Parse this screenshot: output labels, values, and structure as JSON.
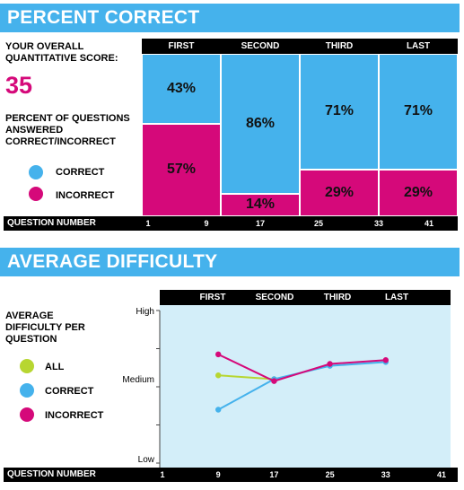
{
  "colors": {
    "accent": "#45b2ec",
    "correct": "#45b2ec",
    "incorrect": "#d5097a",
    "all": "#b7d631",
    "plot_bg": "#d3eef9"
  },
  "section1": {
    "title": "PERCENT CORRECT",
    "score_label": "YOUR OVERALL QUANTITATIVE SCORE:",
    "score_value": "35",
    "percent_label": "PERCENT OF QUESTIONS ANSWERED CORRECT/INCORRECT",
    "legend": {
      "correct": "CORRECT",
      "incorrect": "INCORRECT"
    },
    "question_number_label": "QUESTION NUMBER"
  },
  "section2": {
    "title": "AVERAGE DIFFICULTY",
    "avg_label": "AVERAGE DIFFICULTY PER QUESTION",
    "legend": {
      "all": "ALL",
      "correct": "CORRECT",
      "incorrect": "INCORRECT"
    },
    "question_number_label": "QUESTION NUMBER"
  },
  "chart_data": [
    {
      "type": "bar",
      "categories": [
        "FIRST",
        "SECOND",
        "THIRD",
        "LAST"
      ],
      "series": [
        {
          "name": "CORRECT",
          "values": [
            43,
            86,
            71,
            71
          ],
          "labels": [
            "43%",
            "86%",
            "71%",
            "71%"
          ]
        },
        {
          "name": "INCORRECT",
          "values": [
            57,
            14,
            29,
            29
          ],
          "labels": [
            "57%",
            "14%",
            "29%",
            "29%"
          ]
        }
      ],
      "x_ticks": [
        "1",
        "9",
        "17",
        "25",
        "33",
        "41"
      ],
      "ylim": [
        0,
        100
      ]
    },
    {
      "type": "line",
      "categories": [
        "FIRST",
        "SECOND",
        "THIRD",
        "LAST"
      ],
      "x": [
        9,
        17,
        25,
        33
      ],
      "x_ticks": [
        "1",
        "9",
        "17",
        "25",
        "33",
        "41"
      ],
      "y_ticks": [
        "High",
        "Medium",
        "Low"
      ],
      "ylim": [
        0,
        4
      ],
      "series": [
        {
          "name": "ALL",
          "x": [
            9,
            17
          ],
          "values": [
            2.3,
            2.2
          ]
        },
        {
          "name": "CORRECT",
          "x": [
            9,
            17,
            25,
            33
          ],
          "values": [
            1.4,
            2.2,
            2.55,
            2.65
          ]
        },
        {
          "name": "INCORRECT",
          "x": [
            9,
            17,
            25,
            33
          ],
          "values": [
            2.85,
            2.15,
            2.6,
            2.7
          ]
        }
      ]
    }
  ]
}
